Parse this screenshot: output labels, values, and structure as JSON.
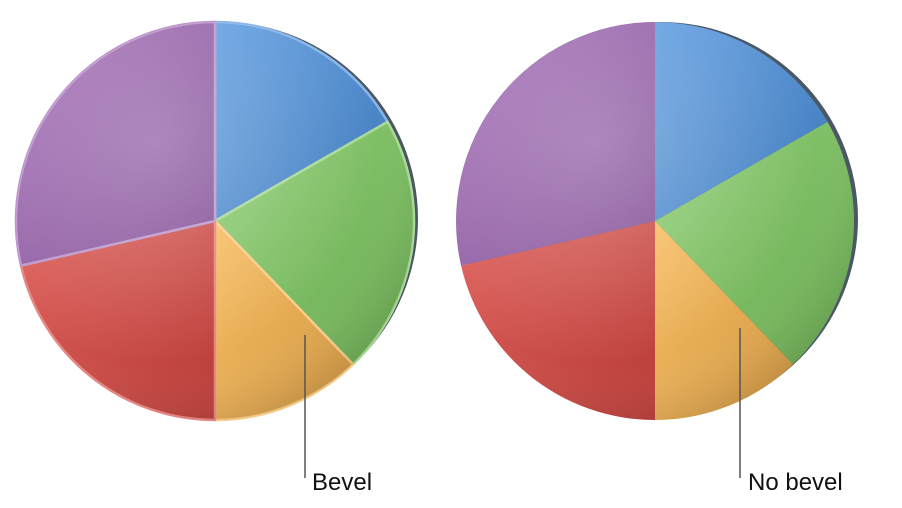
{
  "chart_data": [
    {
      "type": "pie",
      "style": "3d-bevel",
      "values": [
        16.7,
        21.1,
        12.2,
        21.4,
        28.6
      ],
      "colors": [
        "#4a8fdc",
        "#7cc85e",
        "#f7b24a",
        "#d9453f",
        "#9a5fb0"
      ],
      "callout": "Bevel"
    },
    {
      "type": "pie",
      "style": "3d-no-bevel",
      "values": [
        16.7,
        21.1,
        12.2,
        21.4,
        28.6
      ],
      "colors": [
        "#4a8fdc",
        "#7cc85e",
        "#f7b24a",
        "#d9453f",
        "#9a5fb0"
      ],
      "callout": "No bevel"
    }
  ]
}
